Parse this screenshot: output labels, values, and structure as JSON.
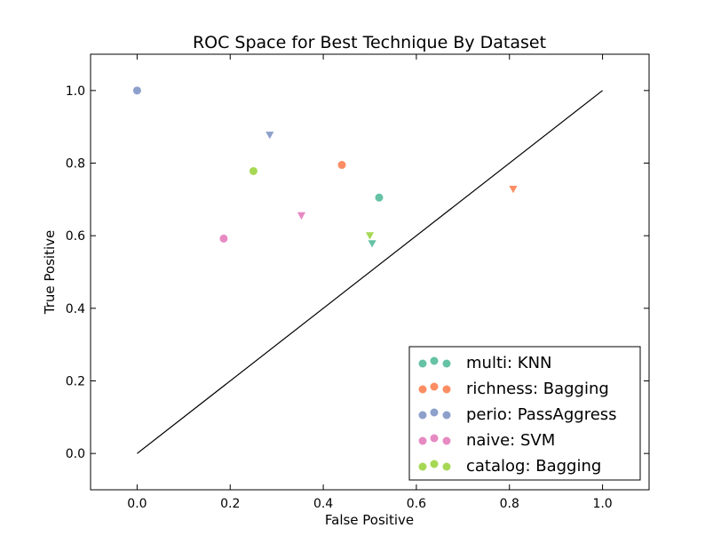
{
  "chart_data": {
    "type": "scatter",
    "title": "ROC Space for Best Technique By Dataset",
    "xlabel": "False Positive",
    "ylabel": "True Positive",
    "xlim": [
      -0.1,
      1.1
    ],
    "ylim": [
      -0.1,
      1.1
    ],
    "xticks": [
      "0.0",
      "0.2",
      "0.4",
      "0.6",
      "0.8",
      "1.0"
    ],
    "yticks": [
      "0.0",
      "0.2",
      "0.4",
      "0.6",
      "0.8",
      "1.0"
    ],
    "grid": false,
    "legend_position": "lower-right",
    "diagonal": [
      [
        0,
        0
      ],
      [
        1,
        1
      ]
    ],
    "series": [
      {
        "name": "multi: KNN",
        "color": "#66c2a5",
        "points": [
          {
            "x": 0.52,
            "y": 0.705,
            "marker": "circle"
          },
          {
            "x": 0.505,
            "y": 0.578,
            "marker": "triangle-down"
          }
        ]
      },
      {
        "name": "richness: Bagging",
        "color": "#fc8d62",
        "points": [
          {
            "x": 0.44,
            "y": 0.795,
            "marker": "circle"
          },
          {
            "x": 0.808,
            "y": 0.728,
            "marker": "triangle-down"
          }
        ]
      },
      {
        "name": "perio: PassAggress",
        "color": "#8da0cb",
        "points": [
          {
            "x": 0.0,
            "y": 1.0,
            "marker": "circle"
          },
          {
            "x": 0.285,
            "y": 0.877,
            "marker": "triangle-down"
          }
        ]
      },
      {
        "name": "naive: SVM",
        "color": "#e78ac3",
        "points": [
          {
            "x": 0.186,
            "y": 0.592,
            "marker": "circle"
          },
          {
            "x": 0.353,
            "y": 0.655,
            "marker": "triangle-down"
          }
        ]
      },
      {
        "name": "catalog: Bagging",
        "color": "#a6d854",
        "points": [
          {
            "x": 0.25,
            "y": 0.778,
            "marker": "circle"
          },
          {
            "x": 0.5,
            "y": 0.6,
            "marker": "triangle-down"
          }
        ]
      }
    ]
  }
}
